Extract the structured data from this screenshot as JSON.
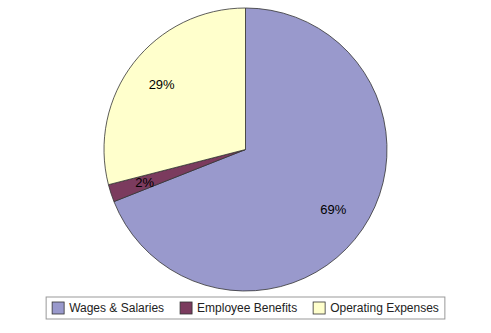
{
  "chart_data": {
    "type": "pie",
    "categories": [
      "Wages & Salaries",
      "Employee Benefits",
      "Operating Expenses"
    ],
    "values": [
      69,
      2,
      29
    ],
    "value_labels": [
      "69%",
      "2%",
      "29%"
    ],
    "colors": [
      "#9999CC",
      "#7B3B5E",
      "#FFFFCC"
    ],
    "data_labels": true,
    "legend": "bottom"
  }
}
